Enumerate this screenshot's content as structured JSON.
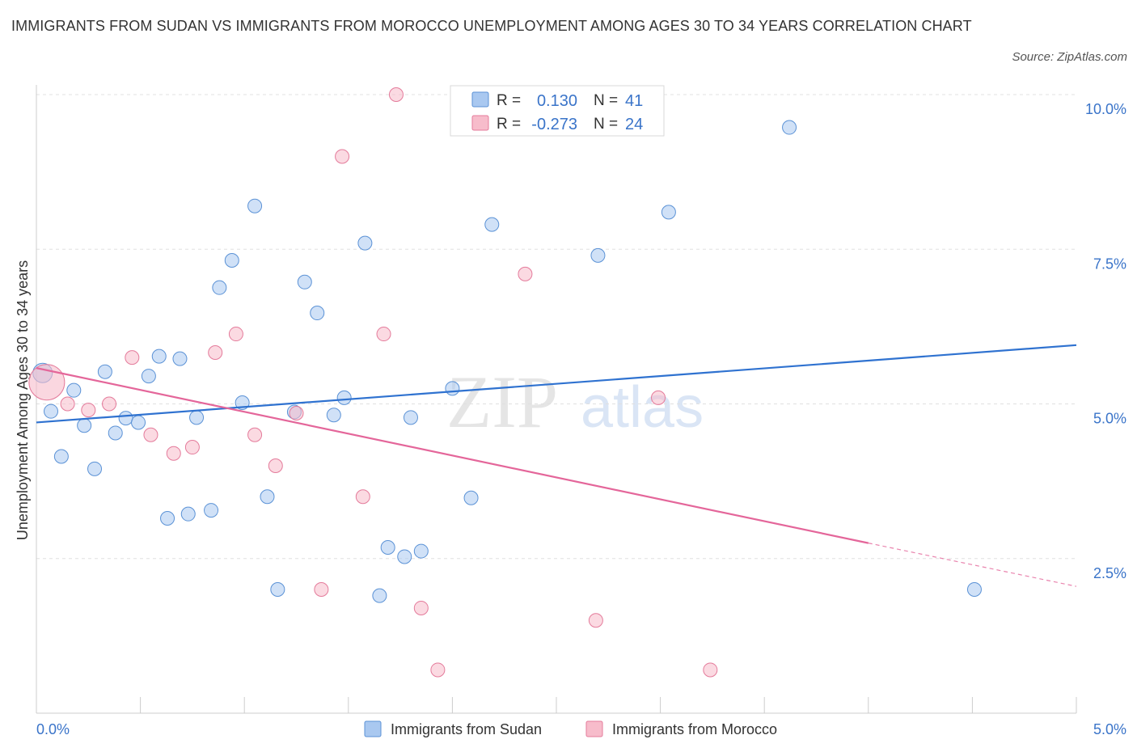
{
  "title": "IMMIGRANTS FROM SUDAN VS IMMIGRANTS FROM MOROCCO UNEMPLOYMENT AMONG AGES 30 TO 34 YEARS CORRELATION CHART",
  "source": "Source: ZipAtlas.com",
  "watermark": {
    "zip": "ZIP",
    "atlas": "atlas"
  },
  "legend": {
    "r_label": "R =",
    "n_label": "N =",
    "rows": [
      {
        "r": "0.130",
        "n": "41",
        "color": "#a9c8f0"
      },
      {
        "r": "-0.273",
        "n": "24",
        "color": "#f7bccb"
      }
    ]
  },
  "chart_data": {
    "type": "scatter",
    "title": "IMMIGRANTS FROM SUDAN VS IMMIGRANTS FROM MOROCCO UNEMPLOYMENT AMONG AGES 30 TO 34 YEARS CORRELATION CHART",
    "xlabel": "",
    "ylabel": "Unemployment Among Ages 30 to 34 years",
    "xlim": [
      0,
      5
    ],
    "ylim": [
      0,
      10.5
    ],
    "x_tick_labels": [
      "0.0%",
      "5.0%"
    ],
    "y_ticks": [
      2.5,
      5.0,
      7.5,
      10.0
    ],
    "y_tick_labels": [
      "2.5%",
      "5.0%",
      "7.5%",
      "10.0%"
    ],
    "grid": true,
    "legend_position": "bottom",
    "series": [
      {
        "name": "Immigrants from Sudan",
        "color": "#a9c8f0",
        "stroke": "#5b92d6",
        "trend_color": "#2f72d0",
        "trend": [
          [
            0,
            4.7
          ],
          [
            5,
            5.95
          ]
        ],
        "points": [
          [
            0.03,
            5.5
          ],
          [
            0.07,
            4.88
          ],
          [
            0.12,
            4.15
          ],
          [
            0.18,
            5.22
          ],
          [
            0.23,
            4.65
          ],
          [
            0.28,
            3.95
          ],
          [
            0.33,
            5.52
          ],
          [
            0.38,
            4.53
          ],
          [
            0.43,
            4.77
          ],
          [
            0.49,
            4.7
          ],
          [
            0.54,
            5.45
          ],
          [
            0.59,
            5.77
          ],
          [
            0.63,
            3.15
          ],
          [
            0.69,
            5.73
          ],
          [
            0.73,
            3.22
          ],
          [
            0.77,
            4.78
          ],
          [
            0.84,
            3.28
          ],
          [
            0.88,
            6.88
          ],
          [
            0.94,
            7.32
          ],
          [
            0.99,
            5.02
          ],
          [
            1.05,
            8.2
          ],
          [
            1.11,
            3.5
          ],
          [
            1.16,
            2.0
          ],
          [
            1.24,
            4.87
          ],
          [
            1.29,
            6.97
          ],
          [
            1.35,
            6.47
          ],
          [
            1.43,
            4.82
          ],
          [
            1.48,
            5.1
          ],
          [
            1.58,
            7.6
          ],
          [
            1.65,
            1.9
          ],
          [
            1.69,
            2.68
          ],
          [
            1.77,
            2.53
          ],
          [
            1.8,
            4.78
          ],
          [
            1.85,
            2.62
          ],
          [
            2.0,
            5.25
          ],
          [
            2.09,
            3.48
          ],
          [
            2.19,
            7.9
          ],
          [
            2.7,
            7.4
          ],
          [
            3.04,
            8.1
          ],
          [
            3.62,
            9.47
          ],
          [
            4.51,
            2.0
          ]
        ]
      },
      {
        "name": "Immigrants from Morocco",
        "color": "#f7bccb",
        "stroke": "#e47b9b",
        "trend_color": "#e4669a",
        "trend": [
          [
            0,
            5.58
          ],
          [
            4,
            2.75
          ]
        ],
        "trend_extended": [
          [
            4,
            2.75
          ],
          [
            5,
            2.05
          ]
        ],
        "points": [
          [
            0.05,
            5.35
          ],
          [
            0.15,
            5.0
          ],
          [
            0.25,
            4.9
          ],
          [
            0.35,
            5.0
          ],
          [
            0.46,
            5.75
          ],
          [
            0.55,
            4.5
          ],
          [
            0.66,
            4.2
          ],
          [
            0.75,
            4.3
          ],
          [
            0.86,
            5.83
          ],
          [
            0.96,
            6.13
          ],
          [
            1.05,
            4.5
          ],
          [
            1.15,
            4.0
          ],
          [
            1.25,
            4.85
          ],
          [
            1.37,
            2.0
          ],
          [
            1.47,
            9.0
          ],
          [
            1.57,
            3.5
          ],
          [
            1.67,
            6.13
          ],
          [
            1.73,
            10.0
          ],
          [
            1.85,
            1.7
          ],
          [
            1.93,
            0.7
          ],
          [
            2.35,
            7.1
          ],
          [
            2.69,
            1.5
          ],
          [
            2.99,
            5.1
          ],
          [
            3.24,
            0.7
          ]
        ]
      }
    ]
  }
}
